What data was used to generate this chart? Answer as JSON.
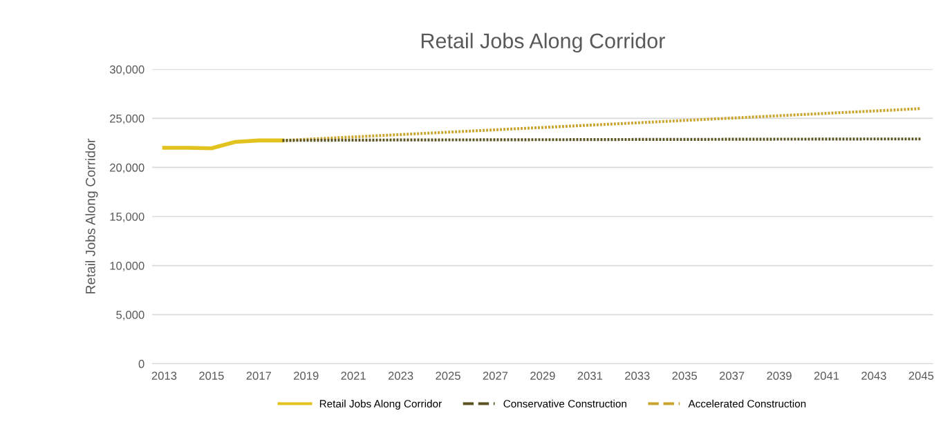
{
  "chart_data": {
    "type": "line",
    "title": "Retail Jobs Along Corridor",
    "ylabel": "Retail Jobs Along Corridor",
    "categories": [
      "2013",
      null,
      "2015",
      null,
      "2017",
      null,
      "2019",
      null,
      "2021",
      null,
      "2023",
      null,
      "2025",
      null,
      "2027",
      null,
      "2029",
      null,
      "2031",
      null,
      "2033",
      null,
      "2035",
      null,
      "2037",
      null,
      "2039",
      null,
      "2041",
      null,
      "2043",
      null,
      "2045"
    ],
    "series": [
      {
        "name": "Retail Jobs Along Corridor",
        "color": "#e2c21e",
        "line_style": "solid",
        "values": [
          22000,
          22000,
          21950,
          22600,
          22750,
          22750,
          null,
          null,
          null,
          null,
          null,
          null,
          null,
          null,
          null,
          null,
          null,
          null,
          null,
          null,
          null,
          null,
          null,
          null,
          null,
          null,
          null,
          null,
          null,
          null,
          null,
          null,
          null
        ]
      },
      {
        "name": "Conservative Construction",
        "color": "#5b5322",
        "line_style": "dotted",
        "values": [
          null,
          null,
          null,
          null,
          null,
          22750,
          22760,
          22770,
          22780,
          22790,
          22800,
          22800,
          22810,
          22810,
          22820,
          22820,
          22830,
          22830,
          22840,
          22840,
          22850,
          22850,
          22860,
          22860,
          22870,
          22870,
          22880,
          22880,
          22890,
          22890,
          22900,
          22900,
          22900
        ]
      },
      {
        "name": "Accelerated Construction",
        "color": "#c9a52e",
        "line_style": "dotted",
        "values": [
          null,
          null,
          null,
          null,
          null,
          22750,
          22870,
          22990,
          23110,
          23230,
          23350,
          23470,
          23590,
          23710,
          23830,
          23950,
          24070,
          24190,
          24310,
          24430,
          24550,
          24670,
          24790,
          24910,
          25030,
          25150,
          25270,
          25390,
          25510,
          25630,
          25750,
          25870,
          26000
        ]
      }
    ],
    "ylim": [
      0,
      30000
    ],
    "yticks": [
      0,
      {
        "value": 5000,
        "label": "5,000"
      },
      {
        "value": 10000,
        "label": "10,000"
      },
      {
        "value": 15000,
        "label": "15,000"
      },
      {
        "value": 20000,
        "label": "20,000"
      },
      {
        "value": 25000,
        "label": "25,000"
      },
      {
        "value": 30000,
        "label": "30,000"
      }
    ],
    "grid": "y",
    "legend": "bottom",
    "marker": "none"
  }
}
